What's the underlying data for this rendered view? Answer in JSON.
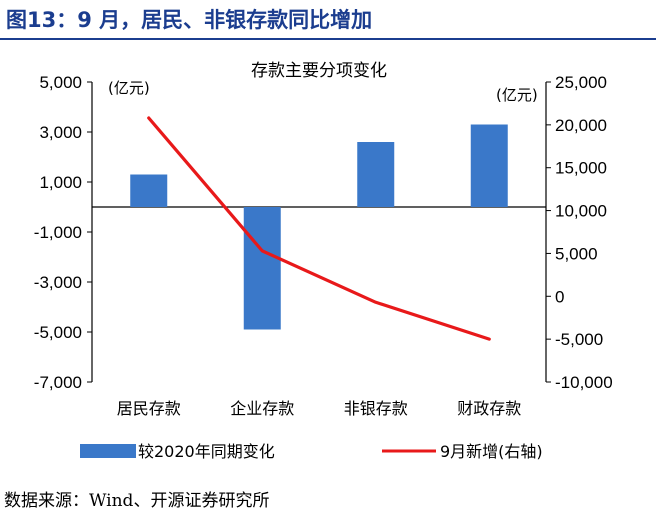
{
  "figure": {
    "title": "图13：9 月，居民、非银存款同比增加",
    "source": "数据来源：Wind、开源证券研究所"
  },
  "colors": {
    "bar": "#3a78c9",
    "line": "#e8191a",
    "title": "#1b3d8f"
  },
  "chart_data": {
    "type": "bar",
    "title": "存款主要分项变化",
    "categories": [
      "居民存款",
      "企业存款",
      "非银存款",
      "财政存款"
    ],
    "left_axis_unit": "(亿元)",
    "right_axis_unit": "(亿元)",
    "left_ticks": [
      "5,000",
      "3,000",
      "1,000",
      "-1,000",
      "-3,000",
      "-5,000",
      "-7,000"
    ],
    "right_ticks": [
      "25,000",
      "20,000",
      "15,000",
      "10,000",
      "5,000",
      "0",
      "-5,000",
      "-10,000"
    ],
    "ylim_left": [
      -7000,
      5000
    ],
    "ylim_right": [
      -10000,
      25000
    ],
    "series": [
      {
        "name": "较2020年同期变化",
        "type": "bar",
        "axis": "left",
        "values": [
          1300,
          -4900,
          2600,
          3300
        ]
      },
      {
        "name": "9月新增(右轴)",
        "type": "line",
        "axis": "right",
        "values": [
          20800,
          5300,
          -700,
          -5000
        ]
      }
    ],
    "legend": [
      "较2020年同期变化",
      "9月新增(右轴)"
    ],
    "legend_position": "bottom",
    "grid": false
  }
}
